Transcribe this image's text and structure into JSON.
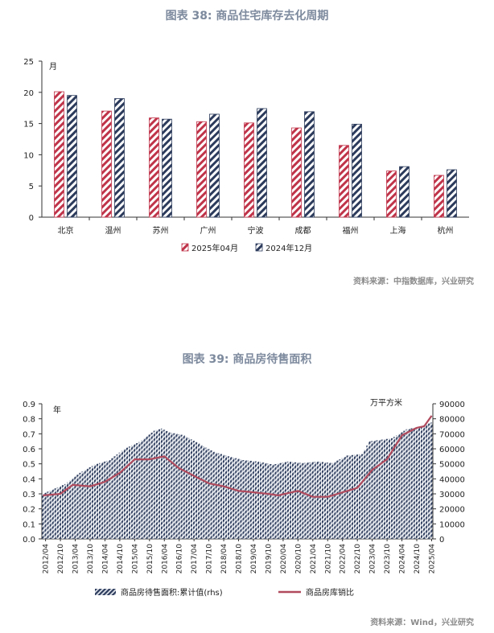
{
  "figure38": {
    "title": "图表 38: 商品住宅库存去化周期",
    "source": "资料来源：中指数据库，兴业研究"
  },
  "figure39": {
    "title": "图表 39: 商品房待售面积",
    "source": "资料来源：Wind，兴业研究"
  },
  "colors": {
    "red": "#c0344a",
    "navy": "#2c3b5c",
    "line": "#b04a5c",
    "title": "#7d8a9e"
  },
  "chart_data": [
    {
      "type": "bar",
      "title": "图表 38: 商品住宅库存去化周期",
      "unit_label": "月",
      "categories": [
        "北京",
        "温州",
        "苏州",
        "广州",
        "宁波",
        "成都",
        "福州",
        "上海",
        "杭州"
      ],
      "series": [
        {
          "name": "2025年04月",
          "values": [
            20.1,
            17.0,
            15.9,
            15.3,
            15.1,
            14.3,
            11.5,
            7.4,
            6.7
          ]
        },
        {
          "name": "2024年12月",
          "values": [
            19.5,
            19.0,
            15.7,
            16.5,
            17.4,
            16.9,
            14.9,
            8.1,
            7.6
          ]
        }
      ],
      "ylim": [
        0,
        25
      ],
      "yticks": [
        0,
        5,
        10,
        15,
        20,
        25
      ],
      "legend": "bottom"
    },
    {
      "type": "bar",
      "title": "图表 39: 商品房待售面积",
      "left_unit": "年",
      "right_unit": "万平方米",
      "ylim_left": [
        0,
        0.9
      ],
      "yticks_left": [
        "0.0",
        "0.1",
        "0.2",
        "0.3",
        "0.4",
        "0.5",
        "0.6",
        "0.7",
        "0.8",
        "0.9"
      ],
      "ylim_right": [
        0,
        90000
      ],
      "yticks_right": [
        "0",
        "10000",
        "20000",
        "30000",
        "40000",
        "50000",
        "60000",
        "70000",
        "80000",
        "90000"
      ],
      "x_tick_labels": [
        "2012/04",
        "2012/10",
        "2013/04",
        "2013/10",
        "2014/04",
        "2014/10",
        "2015/04",
        "2015/10",
        "2016/04",
        "2016/10",
        "2017/04",
        "2017/10",
        "2018/04",
        "2018/10",
        "2019/04",
        "2019/10",
        "2020/04",
        "2020/10",
        "2021/04",
        "2021/10",
        "2022/04",
        "2022/10",
        "2023/04",
        "2023/10",
        "2024/04",
        "2024/10",
        "2025/04"
      ],
      "bar_series": {
        "name": "商品房待售面积:累计值(rhs)",
        "axis": "right",
        "anchor_months": [
          "2012/03",
          "2012/12",
          "2013/06",
          "2013/12",
          "2014/06",
          "2014/12",
          "2015/06",
          "2015/12",
          "2016/03",
          "2016/06",
          "2016/12",
          "2017/06",
          "2017/12",
          "2018/06",
          "2018/12",
          "2019/06",
          "2019/12",
          "2020/06",
          "2020/12",
          "2021/06",
          "2021/12",
          "2022/06",
          "2022/12",
          "2023/03",
          "2023/12",
          "2024/06",
          "2024/12",
          "2025/04"
        ],
        "anchor_values": [
          30000,
          36500,
          44000,
          49500,
          52500,
          60000,
          64500,
          72000,
          73500,
          71000,
          69000,
          63500,
          58000,
          55000,
          52500,
          51500,
          49500,
          51500,
          50500,
          51500,
          50500,
          55500,
          56500,
          65000,
          67000,
          73000,
          75000,
          77500
        ]
      },
      "line_series": {
        "name": "商品房库销比",
        "axis": "left",
        "anchor_months": [
          "2012/03",
          "2012/10",
          "2013/03",
          "2013/10",
          "2014/04",
          "2014/10",
          "2015/04",
          "2015/10",
          "2016/04",
          "2016/10",
          "2017/04",
          "2017/10",
          "2018/04",
          "2018/10",
          "2019/04",
          "2019/10",
          "2020/02",
          "2020/10",
          "2021/04",
          "2021/10",
          "2022/04",
          "2022/10",
          "2023/04",
          "2023/10",
          "2024/04",
          "2024/10",
          "2025/01",
          "2025/04"
        ],
        "anchor_values": [
          0.29,
          0.3,
          0.36,
          0.35,
          0.38,
          0.44,
          0.53,
          0.53,
          0.55,
          0.47,
          0.42,
          0.37,
          0.35,
          0.32,
          0.31,
          0.3,
          0.29,
          0.32,
          0.28,
          0.28,
          0.31,
          0.34,
          0.46,
          0.53,
          0.69,
          0.74,
          0.75,
          0.82
        ]
      },
      "legend": "bottom"
    }
  ]
}
